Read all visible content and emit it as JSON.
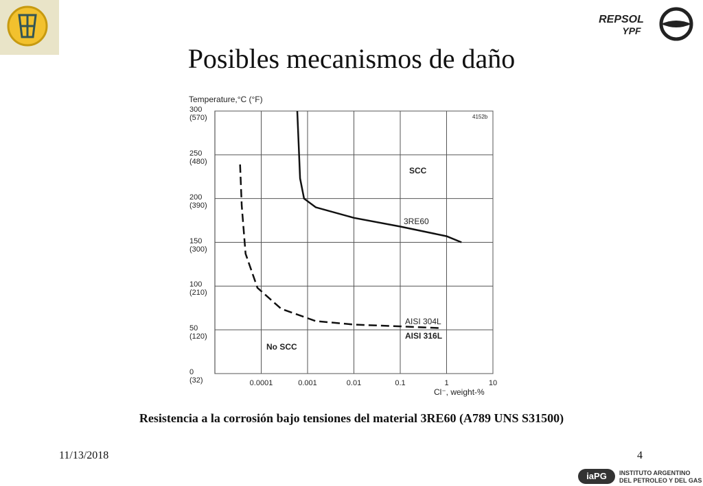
{
  "slide_title": "Posibles mecanismos de daño",
  "caption": "Resistencia a la corrosión bajo tensiones del material 3RE60 (A789 UNS S31500)",
  "footer": {
    "date": "11/13/2018",
    "page": "4"
  },
  "logos": {
    "repsol": "REPSOL",
    "ypf": "YPF",
    "iapg": "iaPG",
    "iapg_line1": "INSTITUTO ARGENTINO",
    "iapg_line2": "DEL PETROLEO Y DEL GAS"
  },
  "chart_data": {
    "type": "line",
    "y_label": "Temperature,°C (°F)",
    "x_label": "Cl⁻, weight-%",
    "xscale": "log",
    "xlim": [
      1e-05,
      10
    ],
    "xticks": [
      0.0001,
      0.001,
      0.01,
      0.1,
      1,
      10
    ],
    "ylim": [
      0,
      300
    ],
    "yticks": [
      {
        "value": 0,
        "label": "0\n(32)"
      },
      {
        "value": 50,
        "label": "50\n(120)"
      },
      {
        "value": 100,
        "label": "100\n(210)"
      },
      {
        "value": 150,
        "label": "150\n(300)"
      },
      {
        "value": 200,
        "label": "200\n(390)"
      },
      {
        "value": 250,
        "label": "250\n(480)"
      },
      {
        "value": 300,
        "label": "300\n(570)"
      }
    ],
    "grid": true,
    "series": [
      {
        "name": "3RE60",
        "color": "#111111",
        "dashed": false,
        "x": [
          0.0006,
          0.00069,
          0.00084,
          0.0015,
          0.01,
          0.1,
          1,
          2.1
        ],
        "values": [
          300,
          223,
          200,
          190,
          178,
          168,
          157,
          150
        ]
      },
      {
        "name": "AISI 304L",
        "color": "#111111",
        "dashed": true,
        "x": [
          3.5e-05,
          3.8e-05,
          4.6e-05,
          8.3e-05,
          0.00027,
          0.0015,
          0.01,
          0.1,
          0.7
        ],
        "values": [
          239,
          192,
          137,
          98,
          74,
          60,
          56,
          54,
          52
        ]
      }
    ],
    "annotations": [
      "SCC",
      "No SCC",
      "AISI 316L",
      "4152b"
    ]
  }
}
